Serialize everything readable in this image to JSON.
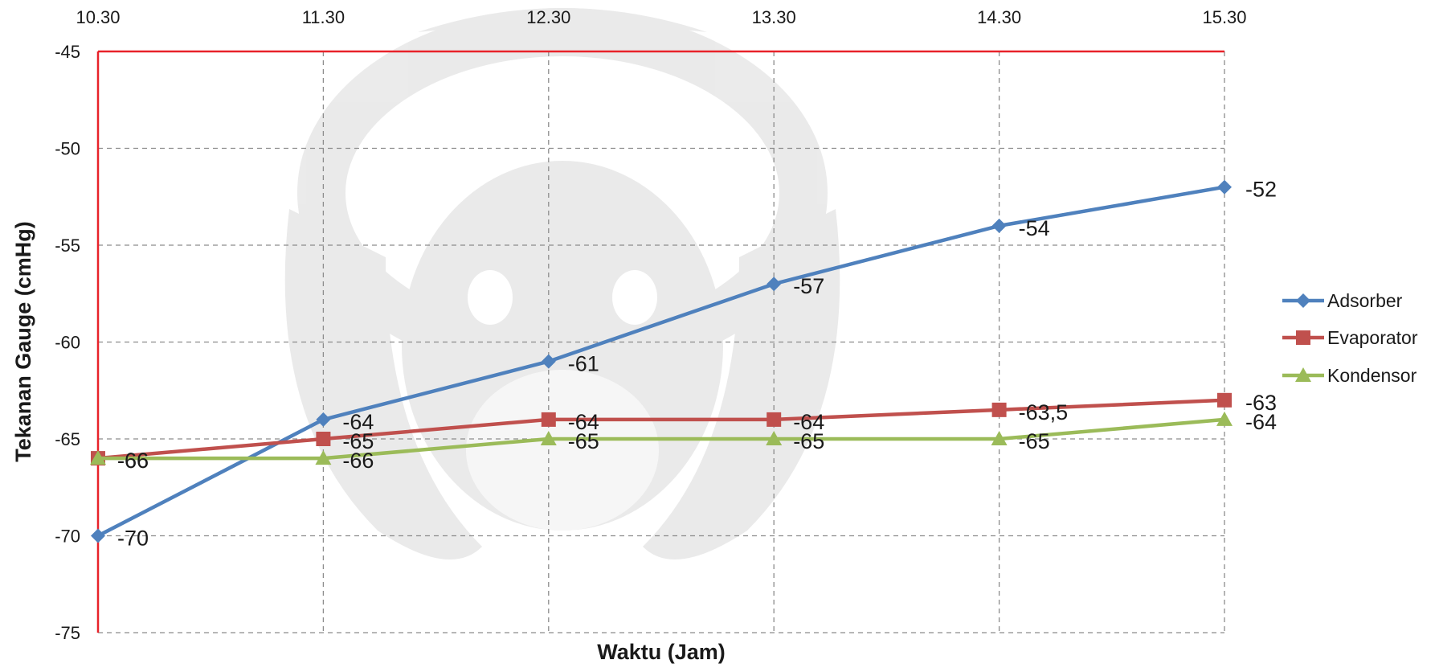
{
  "chart_data": {
    "type": "line",
    "title": "",
    "xlabel": "Waktu (Jam)",
    "ylabel": "Tekanan Gauge  (cmHg)",
    "categories": [
      "10.30",
      "11.30",
      "12.30",
      "13.30",
      "14.30",
      "15.30"
    ],
    "ylim": [
      -75,
      -45
    ],
    "yticks": [
      -45,
      -50,
      -55,
      -60,
      -65,
      -70,
      -75
    ],
    "ytick_labels": [
      "-45",
      "-50",
      "-55",
      "-60",
      "-65",
      "-70",
      "-75"
    ],
    "x_axis_position": "top",
    "grid": true,
    "legend_position": "right",
    "series": [
      {
        "name": "Adsorber",
        "color": "#4f81bd",
        "marker": "diamond",
        "values": [
          -70,
          -64,
          -61,
          -57,
          -54,
          -52
        ],
        "labels": [
          "-70",
          "-64",
          "-61",
          "-57",
          "-54",
          "-52"
        ]
      },
      {
        "name": "Evaporator",
        "color": "#c0504d",
        "marker": "square",
        "values": [
          -66,
          -65,
          -64,
          -64,
          -63.5,
          -63
        ],
        "labels": [
          "-66",
          "-65",
          "-64",
          "-64",
          "-63,5",
          "-63"
        ]
      },
      {
        "name": "Kondensor",
        "color": "#9bbb59",
        "marker": "triangle",
        "values": [
          -66,
          -66,
          -65,
          -65,
          -65,
          -64
        ],
        "labels": [
          "-66",
          "-66",
          "-65",
          "-65",
          "-65",
          "-64"
        ]
      }
    ]
  }
}
